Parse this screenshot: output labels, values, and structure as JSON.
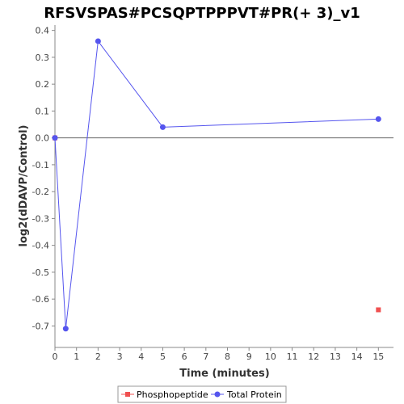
{
  "chart_data": {
    "type": "scatter",
    "title": "RFSVSPAS#PCSQPTPPPVT#PR(+ 3)_v1",
    "xlabel": "Time (minutes)",
    "ylabel": "log2(dDAVP/Control)",
    "xlim": [
      0,
      15.7
    ],
    "ylim": [
      -0.78,
      0.42
    ],
    "x_ticks": [
      0,
      1,
      2,
      3,
      4,
      5,
      6,
      7,
      8,
      9,
      10,
      11,
      12,
      13,
      14,
      15
    ],
    "y_ticks": [
      0.4,
      0.3,
      0.2,
      0.1,
      0.0,
      -0.1,
      -0.2,
      -0.3,
      -0.4,
      -0.5,
      -0.6,
      -0.7
    ],
    "x_tick_labels": [
      "0",
      "1",
      "2",
      "3",
      "4",
      "5",
      "6",
      "7",
      "8",
      "9",
      "10",
      "11",
      "12",
      "13",
      "14",
      "15"
    ],
    "y_tick_labels": [
      "0.4",
      "0.3",
      "0.2",
      "0.1",
      "0.0",
      "-0.1",
      "-0.2",
      "-0.3",
      "-0.4",
      "-0.5",
      "-0.6",
      "-0.7"
    ],
    "zero_line": 0,
    "grid": false,
    "legend_position": "bottom",
    "series": [
      {
        "name": "Phosphopeptide",
        "color": "#f05050",
        "marker": "square",
        "connected": false,
        "points": [
          [
            0,
            0.0
          ],
          [
            15,
            -0.64
          ]
        ]
      },
      {
        "name": "Total Protein",
        "color": "#5555ee",
        "marker": "circle",
        "connected": true,
        "points": [
          [
            0,
            0.0
          ],
          [
            0.5,
            -0.71
          ],
          [
            2,
            0.36
          ],
          [
            5,
            0.04
          ],
          [
            15,
            0.07
          ]
        ]
      }
    ]
  }
}
